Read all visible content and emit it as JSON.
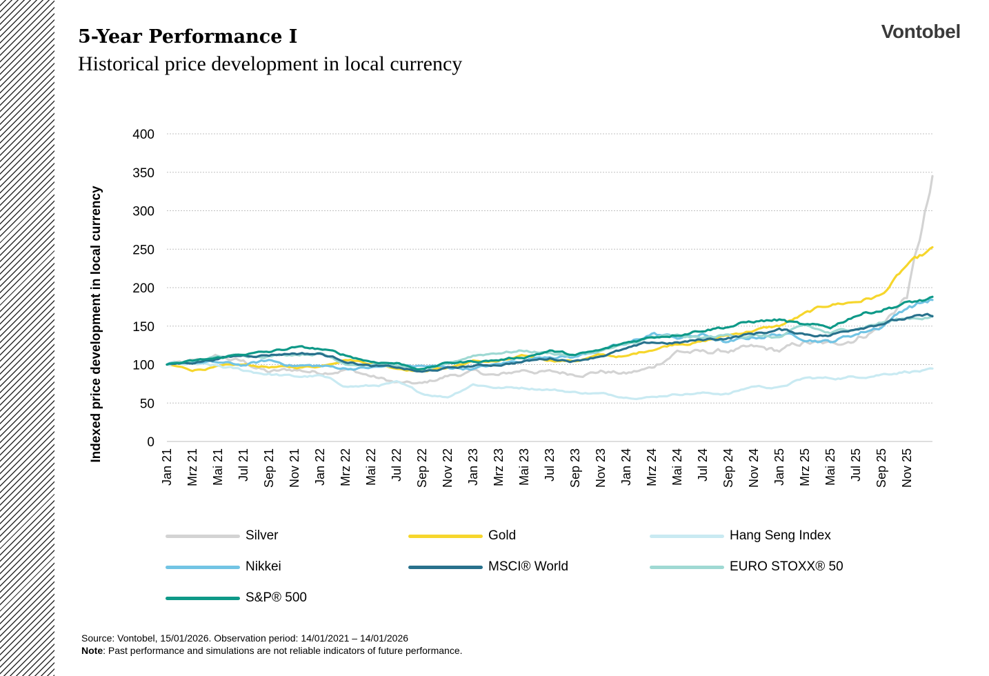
{
  "title": "5-Year Performance I",
  "subtitle": "Historical price development in local currency",
  "logo": "Vontobel",
  "footer": {
    "source": "Source: Vontobel, 15/01/2026. Observation period: 14/01/2021 – 14/01/2026",
    "note_label": "Note",
    "note_text": ": Past performance and simulations are not reliable indicators of future performance."
  },
  "chart_data": {
    "type": "line",
    "ylabel": "Indexed price development in local currency",
    "ylim": [
      0,
      400
    ],
    "yticks": [
      0,
      50,
      100,
      150,
      200,
      250,
      300,
      350,
      400
    ],
    "x_tick_labels": [
      "Jan 21",
      "Mrz 21",
      "Mai 21",
      "Jul 21",
      "Sep 21",
      "Nov 21",
      "Jan 22",
      "Mrz 22",
      "Mai 22",
      "Jul 22",
      "Sep 22",
      "Nov 22",
      "Jan 23",
      "Mrz 23",
      "Mai 23",
      "Jul 23",
      "Sep 23",
      "Nov 23",
      "Jan 24",
      "Mrz 24",
      "Mai 24",
      "Jul 24",
      "Sep 24",
      "Nov 24",
      "Jan 25",
      "Mrz 25",
      "Mai 25",
      "Jul 25",
      "Sep 25",
      "Nov 25"
    ],
    "x_period": [
      "2021-01",
      "2026-01"
    ],
    "grid": "horizontal",
    "legend_position": "bottom",
    "x": [
      "2021-01",
      "2021-03",
      "2021-05",
      "2021-07",
      "2021-09",
      "2021-11",
      "2022-01",
      "2022-03",
      "2022-05",
      "2022-07",
      "2022-09",
      "2022-11",
      "2023-01",
      "2023-03",
      "2023-05",
      "2023-07",
      "2023-09",
      "2023-11",
      "2024-01",
      "2024-03",
      "2024-05",
      "2024-07",
      "2024-09",
      "2024-11",
      "2025-01",
      "2025-03",
      "2025-05",
      "2025-07",
      "2025-09",
      "2025-11",
      "2026-01"
    ],
    "series": [
      {
        "name": "Silver",
        "color": "#d3d3d3",
        "values": [
          100,
          102,
          110,
          103,
          90,
          93,
          90,
          95,
          85,
          76,
          74,
          85,
          90,
          85,
          93,
          90,
          88,
          92,
          88,
          95,
          118,
          115,
          118,
          120,
          117,
          128,
          125,
          135,
          150,
          190,
          335
        ]
      },
      {
        "name": "Gold",
        "color": "#f6d62c",
        "values": [
          100,
          93,
          97,
          99,
          97,
          96,
          98,
          108,
          102,
          96,
          92,
          96,
          104,
          104,
          110,
          106,
          105,
          112,
          110,
          120,
          128,
          130,
          138,
          145,
          150,
          165,
          178,
          182,
          190,
          228,
          248
        ]
      },
      {
        "name": "Hang Seng Index",
        "color": "#c9eaf2",
        "values": [
          100,
          100,
          97,
          92,
          88,
          84,
          85,
          72,
          72,
          76,
          62,
          58,
          75,
          70,
          70,
          68,
          64,
          62,
          58,
          58,
          62,
          63,
          62,
          72,
          70,
          82,
          82,
          84,
          88,
          92,
          92
        ]
      },
      {
        "name": "Nikkei",
        "color": "#72c4e4",
        "values": [
          100,
          103,
          102,
          99,
          105,
          99,
          98,
          95,
          96,
          98,
          98,
          96,
          95,
          100,
          106,
          112,
          110,
          120,
          125,
          140,
          135,
          138,
          128,
          135,
          140,
          135,
          130,
          140,
          150,
          175,
          185
        ]
      },
      {
        "name": "MSCI® World",
        "color": "#28718c",
        "values": [
          100,
          103,
          108,
          112,
          113,
          115,
          114,
          105,
          98,
          96,
          90,
          95,
          98,
          100,
          104,
          108,
          105,
          112,
          120,
          128,
          128,
          132,
          135,
          140,
          145,
          140,
          138,
          148,
          155,
          160,
          163
        ]
      },
      {
        "name": "EURO STOXX® 50",
        "color": "#9fd9d3",
        "values": [
          100,
          104,
          110,
          112,
          112,
          114,
          115,
          102,
          100,
          98,
          90,
          100,
          112,
          116,
          118,
          115,
          112,
          118,
          125,
          135,
          136,
          134,
          138,
          138,
          135,
          150,
          140,
          148,
          155,
          160,
          163
        ]
      },
      {
        "name": "S&P® 500",
        "color": "#0e9988",
        "values": [
          100,
          104,
          108,
          114,
          116,
          122,
          120,
          112,
          104,
          102,
          94,
          102,
          104,
          106,
          110,
          118,
          112,
          118,
          128,
          136,
          140,
          146,
          150,
          156,
          158,
          150,
          148,
          165,
          172,
          180,
          185
        ]
      }
    ]
  }
}
